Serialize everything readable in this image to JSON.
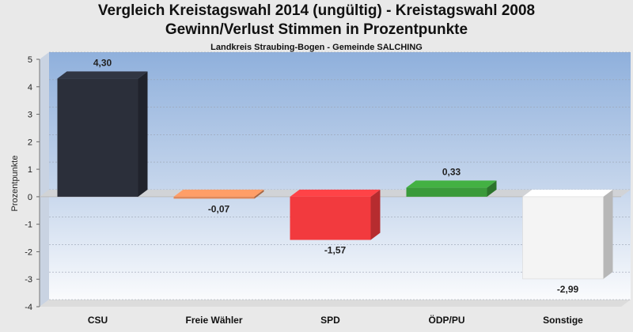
{
  "title": "Vergleich Kreistagswahl 2014 (ungültig) - Kreistagswahl 2008",
  "subtitle": "Gewinn/Verlust Stimmen in Prozentpunkte",
  "caption": "Landkreis Straubing-Bogen - Gemeinde SALCHING",
  "chart_data": {
    "type": "bar",
    "categories": [
      "CSU",
      "Freie Wähler",
      "SPD",
      "ÖDP/PU",
      "Sonstige"
    ],
    "values": [
      4.3,
      -0.07,
      -1.57,
      0.33,
      -2.99
    ],
    "value_labels": [
      "4,30",
      "-0,07",
      "-1,57",
      "0,33",
      "-2,99"
    ],
    "ylabel": "Prozentpunkte",
    "ylim": [
      -4,
      5
    ],
    "yticks": [
      "5",
      "4",
      "3",
      "2",
      "1",
      "0",
      "-1",
      "-2",
      "-3",
      "-4"
    ],
    "grid": true,
    "colors": [
      "#2b2f3a",
      "#e0895a",
      "#f23a3e",
      "#3a9a3a",
      "#f4f4f4"
    ]
  }
}
